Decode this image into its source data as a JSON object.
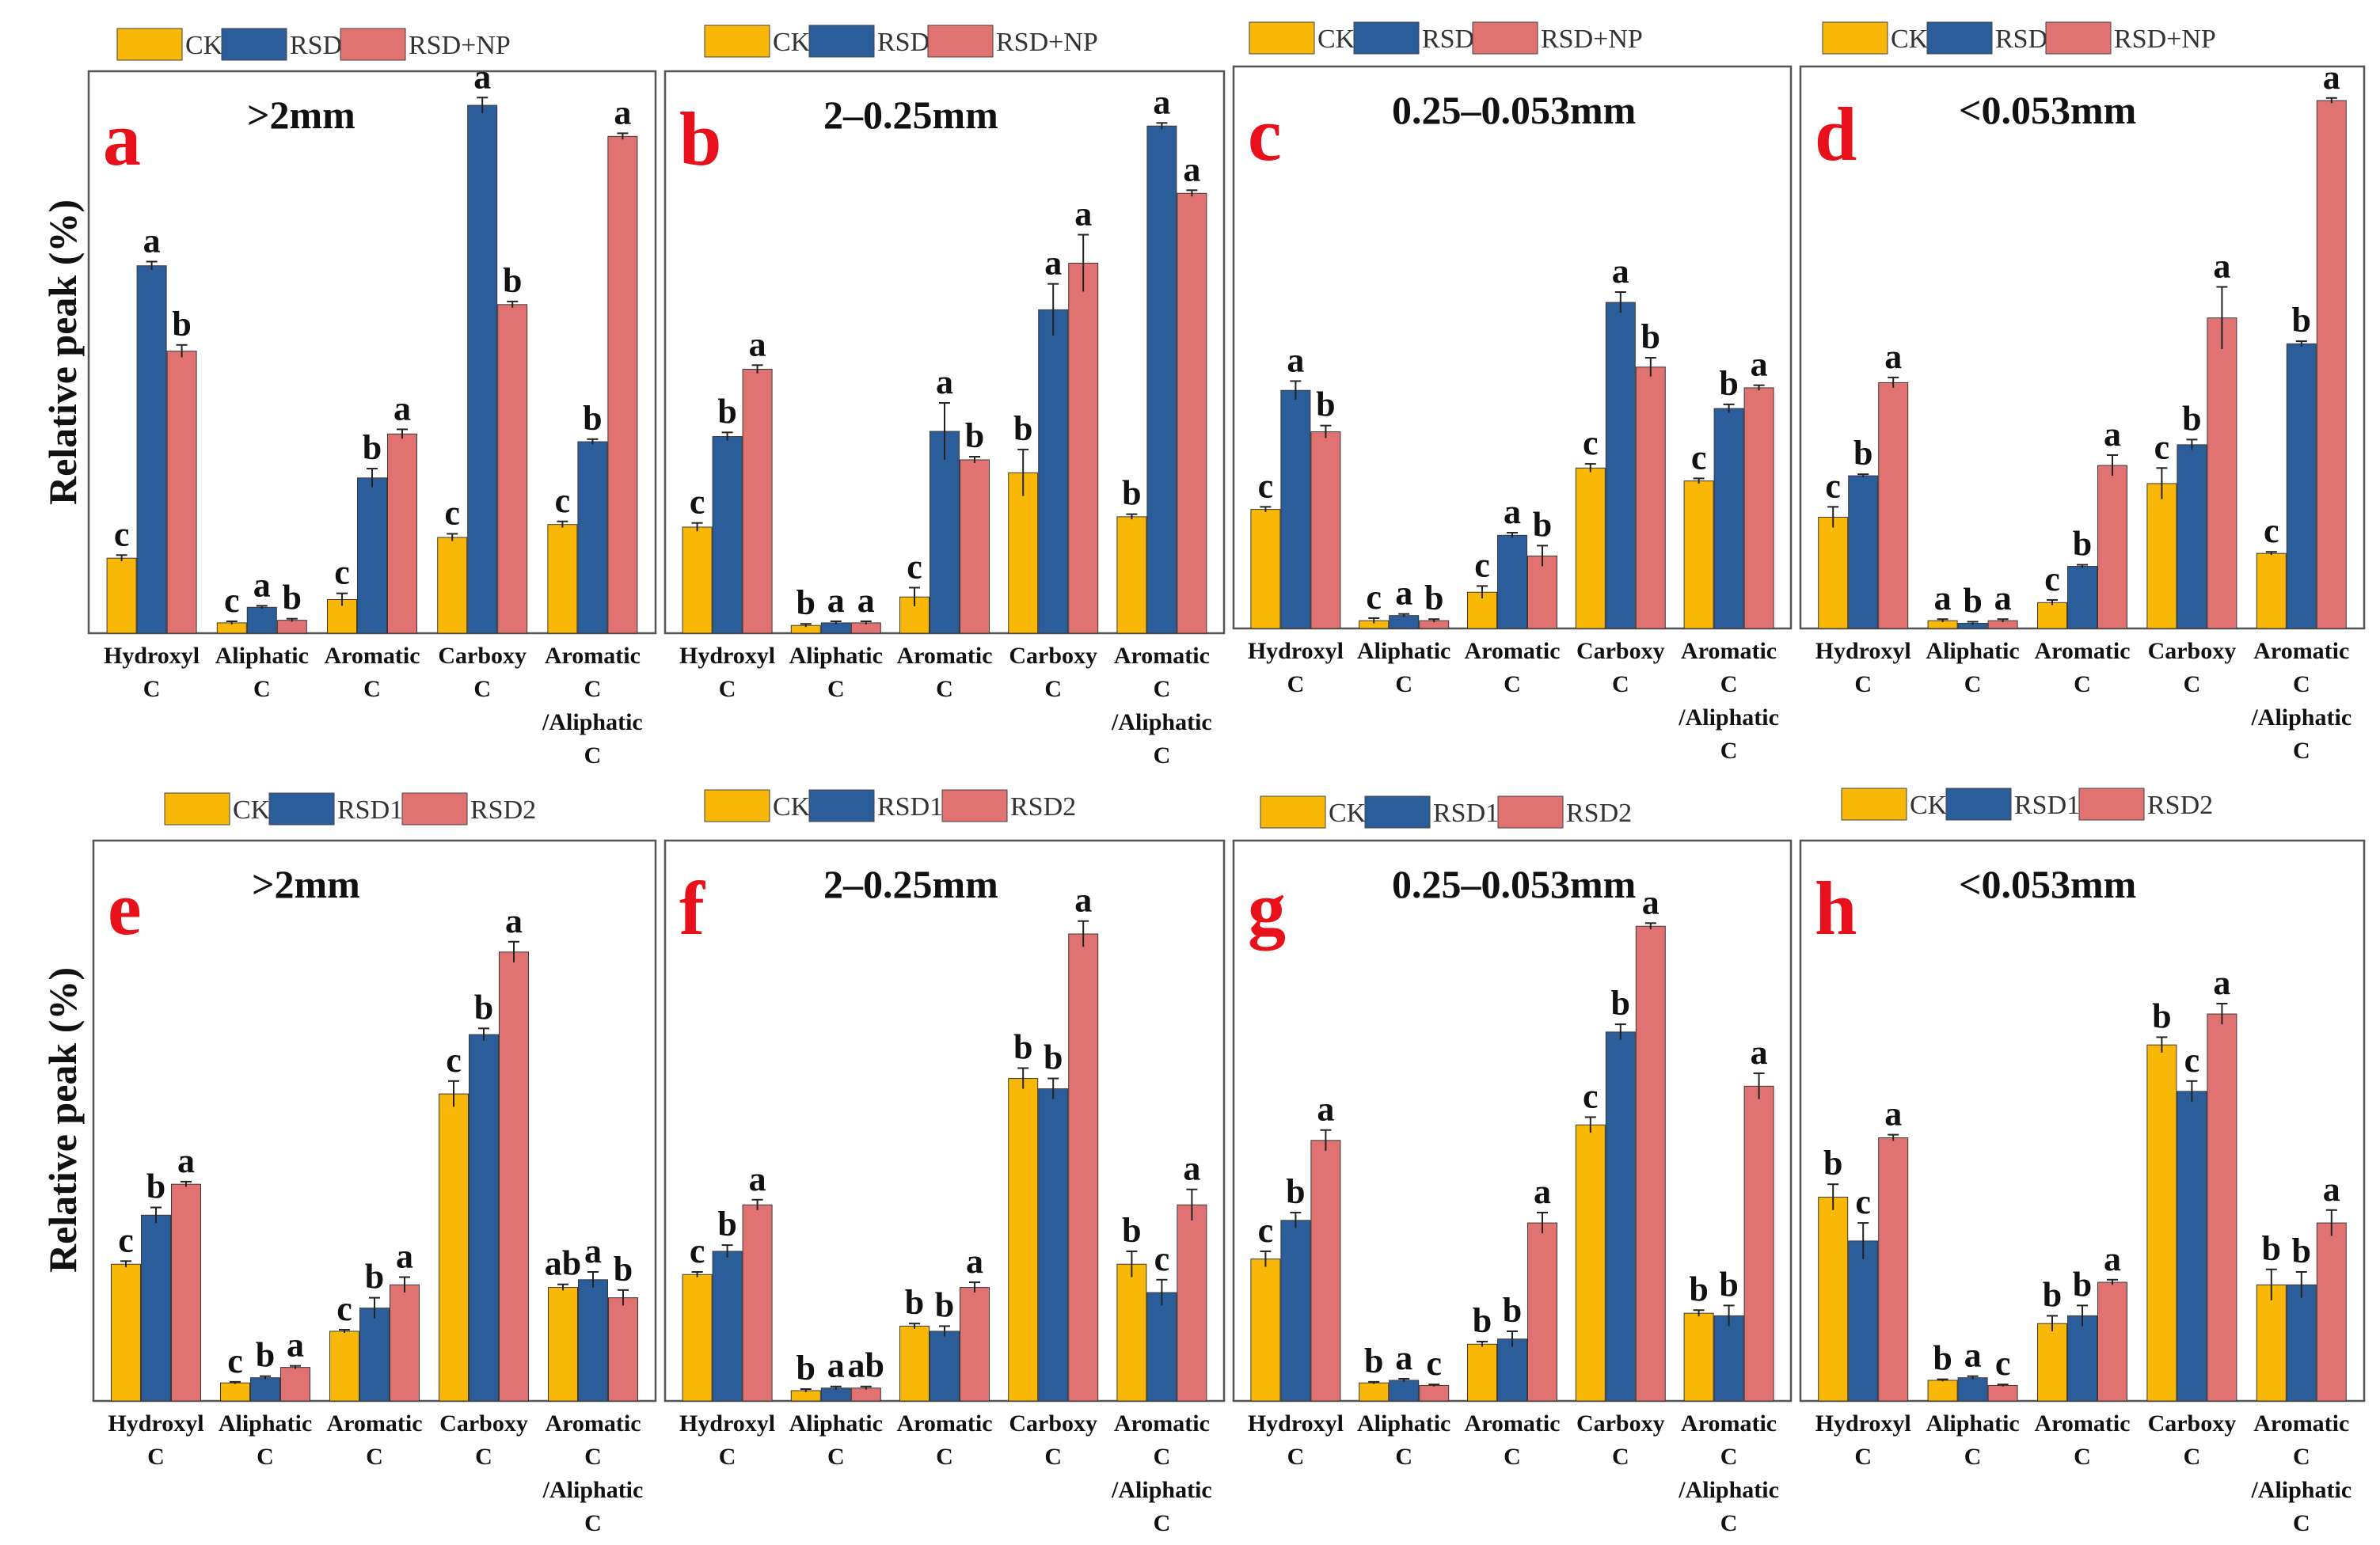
{
  "ylabel": "Relative peak (%)",
  "colors": {
    "CK": "#f9b807",
    "RSD": "#2a5d9a",
    "RSDNP": "#e07272",
    "frame": "#555555"
  },
  "chart_data": [
    {
      "panel": "a",
      "title": ">2mm",
      "type": "bar",
      "ylim": [
        0,
        100
      ],
      "categories": [
        [
          "Hydroxyl",
          "C"
        ],
        [
          "Aliphatic",
          "C"
        ],
        [
          "Aromatic",
          "C"
        ],
        [
          "Carboxy",
          "C"
        ],
        [
          "Aromatic",
          "C",
          "/Aliphatic",
          "C"
        ]
      ],
      "series": [
        {
          "name": "CK",
          "values": [
            14.5,
            2,
            6.5,
            18.5,
            21
          ],
          "errors": [
            0.6,
            0.3,
            1.2,
            0.7,
            0.6
          ],
          "letters": [
            "c",
            "c",
            "c",
            "c",
            "c"
          ]
        },
        {
          "name": "RSD",
          "values": [
            71,
            5,
            30,
            102,
            37
          ],
          "errors": [
            0.8,
            0.3,
            1.8,
            1.5,
            0.5
          ],
          "letters": [
            "a",
            "a",
            "b",
            "a",
            "b"
          ]
        },
        {
          "name": "RSD+NP",
          "values": [
            54.5,
            2.5,
            38.5,
            63.5,
            96
          ],
          "errors": [
            1.2,
            0.3,
            0.9,
            0.6,
            0.6
          ],
          "letters": [
            "b",
            "b",
            "a",
            "b",
            "a"
          ]
        }
      ]
    },
    {
      "panel": "b",
      "title": "2–0.25mm",
      "type": "bar",
      "ylim": [
        0,
        100
      ],
      "categories": [
        [
          "Hydroxyl",
          "C"
        ],
        [
          "Aliphatic",
          "C"
        ],
        [
          "Aromatic",
          "C"
        ],
        [
          "Carboxy",
          "C"
        ],
        [
          "Aromatic",
          "C",
          "/Aliphatic",
          "C"
        ]
      ],
      "series": [
        {
          "name": "CK",
          "values": [
            20.5,
            1.5,
            7,
            31,
            22.5
          ],
          "errors": [
            0.8,
            0.3,
            1.8,
            4.5,
            0.5
          ],
          "letters": [
            "c",
            "b",
            "c",
            "b",
            "b"
          ]
        },
        {
          "name": "RSD",
          "values": [
            38,
            2,
            39,
            62.5,
            98
          ],
          "errors": [
            0.8,
            0.3,
            5.5,
            5,
            0.6
          ],
          "letters": [
            "b",
            "a",
            "a",
            "a",
            "a"
          ]
        },
        {
          "name": "RSD+NP",
          "values": [
            51,
            2,
            33.5,
            71.5,
            85
          ],
          "errors": [
            0.8,
            0.3,
            0.6,
            5.5,
            0.6
          ],
          "letters": [
            "a",
            "a",
            "b",
            "a",
            "a"
          ]
        }
      ]
    },
    {
      "panel": "c",
      "title": "0.25–0.053mm",
      "type": "bar",
      "ylim": [
        0,
        100
      ],
      "categories": [
        [
          "Hydroxyl",
          "C"
        ],
        [
          "Aliphatic",
          "C"
        ],
        [
          "Aromatic",
          "C"
        ],
        [
          "Carboxy",
          "C"
        ],
        [
          "Aromatic",
          "C",
          "/Aliphatic",
          "C"
        ]
      ],
      "series": [
        {
          "name": "CK",
          "values": [
            23,
            1.5,
            7,
            31,
            28.5
          ],
          "errors": [
            0.5,
            0.5,
            1.2,
            0.8,
            0.5
          ],
          "letters": [
            "c",
            "c",
            "c",
            "c",
            "c"
          ]
        },
        {
          "name": "RSD",
          "values": [
            46,
            2.5,
            18,
            63,
            42.5
          ],
          "errors": [
            1.8,
            0.3,
            0.5,
            2,
            0.8
          ],
          "letters": [
            "a",
            "a",
            "a",
            "a",
            "b"
          ]
        },
        {
          "name": "RSD+NP",
          "values": [
            38,
            1.5,
            14,
            50.5,
            46.5
          ],
          "errors": [
            1.2,
            0.3,
            2,
            1.8,
            0.5
          ],
          "letters": [
            "b",
            "b",
            "b",
            "b",
            "a"
          ]
        }
      ]
    },
    {
      "panel": "d",
      "title": "<0.053mm",
      "type": "bar",
      "ylim": [
        0,
        100
      ],
      "categories": [
        [
          "Hydroxyl",
          "C"
        ],
        [
          "Aliphatic",
          "C"
        ],
        [
          "Aromatic",
          "C"
        ],
        [
          "Carboxy",
          "C"
        ],
        [
          "Aromatic",
          "C",
          "/Aliphatic",
          "C"
        ]
      ],
      "series": [
        {
          "name": "CK",
          "values": [
            21.5,
            1.5,
            5,
            28,
            14.5
          ],
          "errors": [
            2,
            0.3,
            0.5,
            3,
            0.3
          ],
          "letters": [
            "c",
            "a",
            "c",
            "c",
            "c"
          ]
        },
        {
          "name": "RSD",
          "values": [
            29.5,
            1,
            12,
            35.5,
            55
          ],
          "errors": [
            0.3,
            0.3,
            0.3,
            1,
            0.5
          ],
          "letters": [
            "b",
            "b",
            "b",
            "b",
            "b"
          ]
        },
        {
          "name": "RSD+NP",
          "values": [
            47.5,
            1.5,
            31.5,
            60,
            102
          ],
          "errors": [
            1,
            0.3,
            2,
            6,
            0.5
          ],
          "letters": [
            "a",
            "a",
            "a",
            "a",
            "a"
          ]
        }
      ]
    },
    {
      "panel": "e",
      "title": ">2mm",
      "type": "bar",
      "ylim": [
        0,
        100
      ],
      "categories": [
        [
          "Hydroxyl",
          "C"
        ],
        [
          "Aliphatic",
          "C"
        ],
        [
          "Aromatic",
          "C"
        ],
        [
          "Carboxy",
          "C"
        ],
        [
          "Aromatic",
          "C",
          "/Aliphatic",
          "C"
        ]
      ],
      "series": [
        {
          "name": "CK",
          "values": [
            26.5,
            3.5,
            13.5,
            59.5,
            22
          ],
          "errors": [
            0.6,
            0.2,
            0.3,
            2.5,
            0.6
          ],
          "letters": [
            "c",
            "c",
            "c",
            "c",
            "ab"
          ]
        },
        {
          "name": "RSD1",
          "values": [
            36,
            4.5,
            18,
            71,
            23.5
          ],
          "errors": [
            1.5,
            0.3,
            2,
            1.2,
            1.5
          ],
          "letters": [
            "b",
            "b",
            "b",
            "b",
            "a"
          ]
        },
        {
          "name": "RSD2",
          "values": [
            42,
            6.5,
            22.5,
            87,
            20
          ],
          "errors": [
            0.5,
            0.3,
            1.5,
            2,
            1.5
          ],
          "letters": [
            "a",
            "a",
            "a",
            "a",
            "b"
          ]
        }
      ]
    },
    {
      "panel": "f",
      "title": "2–0.25mm",
      "type": "bar",
      "ylim": [
        0,
        100
      ],
      "categories": [
        [
          "Hydroxyl",
          "C"
        ],
        [
          "Aliphatic",
          "C"
        ],
        [
          "Aromatic",
          "C"
        ],
        [
          "Carboxy",
          "C"
        ],
        [
          "Aromatic",
          "C",
          "/Aliphatic",
          "C"
        ]
      ],
      "series": [
        {
          "name": "CK",
          "values": [
            24.5,
            2,
            14.5,
            62.5,
            26.5
          ],
          "errors": [
            0.5,
            0.3,
            0.5,
            2,
            2.5
          ],
          "letters": [
            "c",
            "b",
            "b",
            "b",
            "b"
          ]
        },
        {
          "name": "RSD1",
          "values": [
            29,
            2.5,
            13.5,
            60.5,
            21
          ],
          "errors": [
            1.2,
            0.3,
            1,
            2,
            2.5
          ],
          "letters": [
            "b",
            "a",
            "b",
            "b",
            "c"
          ]
        },
        {
          "name": "RSD2",
          "values": [
            38,
            2.5,
            22,
            90.5,
            38
          ],
          "errors": [
            1,
            0.3,
            1,
            2.5,
            3
          ],
          "letters": [
            "a",
            "ab",
            "a",
            "a",
            "a"
          ]
        }
      ]
    },
    {
      "panel": "g",
      "title": "0.25–0.053mm",
      "type": "bar",
      "ylim": [
        0,
        100
      ],
      "categories": [
        [
          "Hydroxyl",
          "C"
        ],
        [
          "Aliphatic",
          "C"
        ],
        [
          "Aromatic",
          "C"
        ],
        [
          "Carboxy",
          "C"
        ],
        [
          "Aromatic",
          "C",
          "/Aliphatic",
          "C"
        ]
      ],
      "series": [
        {
          "name": "CK",
          "values": [
            27.5,
            3.5,
            11,
            53.5,
            17
          ],
          "errors": [
            1.5,
            0.2,
            0.5,
            1.5,
            0.6
          ],
          "letters": [
            "c",
            "b",
            "b",
            "c",
            "b"
          ]
        },
        {
          "name": "RSD1",
          "values": [
            35,
            4,
            12,
            71.5,
            16.5
          ],
          "errors": [
            1.5,
            0.3,
            1.5,
            1.5,
            2
          ],
          "letters": [
            "b",
            "a",
            "b",
            "b",
            "b"
          ]
        },
        {
          "name": "RSD2",
          "values": [
            50.5,
            3,
            34.5,
            92,
            61
          ],
          "errors": [
            2,
            0.2,
            2,
            0.6,
            2.5
          ],
          "letters": [
            "a",
            "c",
            "a",
            "a",
            "a"
          ]
        }
      ]
    },
    {
      "panel": "h",
      "title": "<0.053mm",
      "type": "bar",
      "ylim": [
        0,
        100
      ],
      "categories": [
        [
          "Hydroxyl",
          "C"
        ],
        [
          "Aliphatic",
          "C"
        ],
        [
          "Aromatic",
          "C"
        ],
        [
          "Carboxy",
          "C"
        ],
        [
          "Aromatic",
          "C",
          "/Aliphatic",
          "C"
        ]
      ],
      "series": [
        {
          "name": "CK",
          "values": [
            39.5,
            4,
            15,
            69,
            22.5
          ],
          "errors": [
            2.5,
            0.2,
            1.5,
            1.5,
            3
          ],
          "letters": [
            "b",
            "b",
            "b",
            "b",
            "b"
          ]
        },
        {
          "name": "RSD1",
          "values": [
            31,
            4.5,
            16.5,
            60,
            22.5
          ],
          "errors": [
            3.5,
            0.3,
            2,
            2,
            2.5
          ],
          "letters": [
            "c",
            "a",
            "b",
            "c",
            "b"
          ]
        },
        {
          "name": "RSD2",
          "values": [
            51,
            3,
            23,
            75,
            34.5
          ],
          "errors": [
            0.6,
            0.2,
            0.5,
            2,
            2.5
          ],
          "letters": [
            "a",
            "c",
            "a",
            "a",
            "a"
          ]
        }
      ]
    }
  ]
}
